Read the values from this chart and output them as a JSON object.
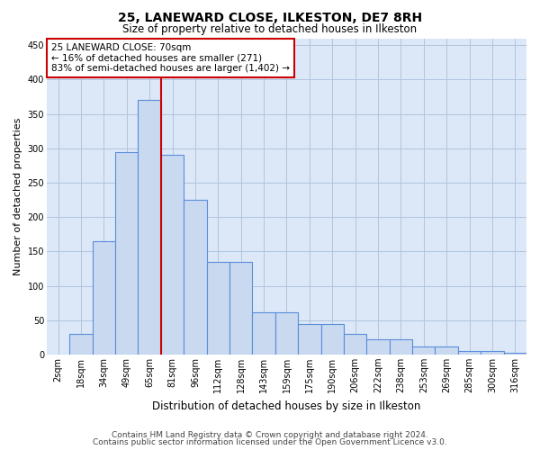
{
  "title": "25, LANEWARD CLOSE, ILKESTON, DE7 8RH",
  "subtitle": "Size of property relative to detached houses in Ilkeston",
  "xlabel": "Distribution of detached houses by size in Ilkeston",
  "ylabel": "Number of detached properties",
  "footer_line1": "Contains HM Land Registry data © Crown copyright and database right 2024.",
  "footer_line2": "Contains public sector information licensed under the Open Government Licence v3.0.",
  "annotation_title": "25 LANEWARD CLOSE: 70sqm",
  "annotation_line1": "← 16% of detached houses are smaller (271)",
  "annotation_line2": "83% of semi-detached houses are larger (1,402) →",
  "bar_color": "#c9d9f0",
  "bar_edge_color": "#5b8dd9",
  "vline_color": "#cc0000",
  "annotation_box_color": "#cc0000",
  "categories": [
    "2sqm",
    "18sqm",
    "34sqm",
    "49sqm",
    "65sqm",
    "81sqm",
    "96sqm",
    "112sqm",
    "128sqm",
    "143sqm",
    "159sqm",
    "175sqm",
    "190sqm",
    "206sqm",
    "222sqm",
    "238sqm",
    "253sqm",
    "269sqm",
    "285sqm",
    "300sqm",
    "316sqm"
  ],
  "values": [
    0,
    30,
    165,
    295,
    370,
    290,
    225,
    135,
    135,
    62,
    62,
    44,
    44,
    30,
    22,
    22,
    11,
    11,
    5,
    5,
    2
  ],
  "ylim": [
    0,
    460
  ],
  "yticks": [
    0,
    50,
    100,
    150,
    200,
    250,
    300,
    350,
    400,
    450
  ],
  "vline_x_index": 4.5,
  "background_color": "#ffffff",
  "plot_bg_color": "#dce8f8",
  "grid_color": "#b0c4de"
}
